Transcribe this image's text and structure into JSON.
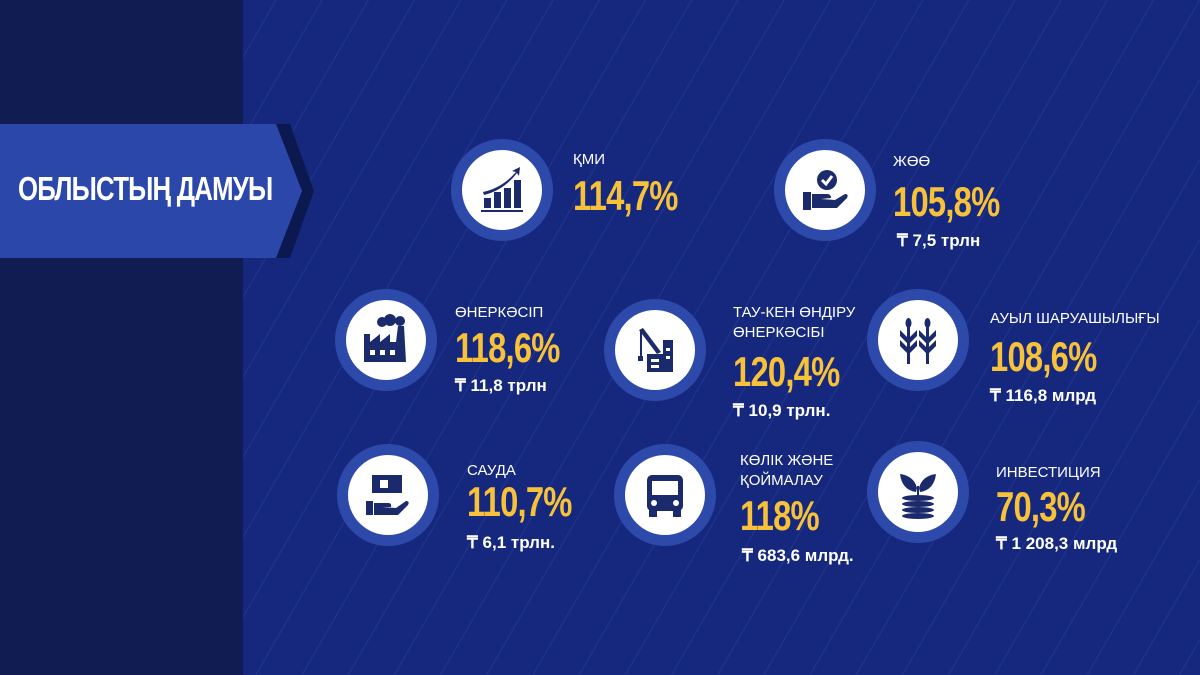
{
  "title": "ОБЛЫСТЫҢ ДАМУЫ",
  "colors": {
    "background": "#15287e",
    "sidebar": "#101c52",
    "banner": "#2b47a9",
    "value": "#f7c23a",
    "icon": "#1b2a6b"
  },
  "items": [
    {
      "icon": "growth-chart-icon",
      "label": "ҚМИ",
      "value": "114,7%",
      "amount": ""
    },
    {
      "icon": "hand-check-icon",
      "label": "ЖӨӨ",
      "value": "105,8%",
      "amount": "₸ 7,5 трлн"
    },
    {
      "icon": "factory-icon",
      "label": "ӨНЕРКӘСІП",
      "value": "118,6%",
      "amount": "₸ 11,8 трлн"
    },
    {
      "icon": "mining-crane-icon",
      "label": "ТАУ-КЕН ӨНДІРУ ӨНЕРКӘСІБІ",
      "value": "120,4%",
      "amount": "₸ 10,9 трлн."
    },
    {
      "icon": "wheat-icon",
      "label": "АУЫЛ ШАРУАШЫЛЫҒЫ",
      "value": "108,6%",
      "amount": "₸ 116,8 млрд"
    },
    {
      "icon": "trade-hand-icon",
      "label": "САУДА",
      "value": "110,7%",
      "amount": "₸ 6,1 трлн."
    },
    {
      "icon": "bus-icon",
      "label": "КӨЛІК ЖӘНЕ ҚОЙМАЛАУ",
      "value": "118%",
      "amount": "₸ 683,6 млрд."
    },
    {
      "icon": "investment-sprout-icon",
      "label": "ИНВЕСТИЦИЯ",
      "value": "70,3%",
      "amount": "₸ 1 208,3 млрд"
    }
  ]
}
